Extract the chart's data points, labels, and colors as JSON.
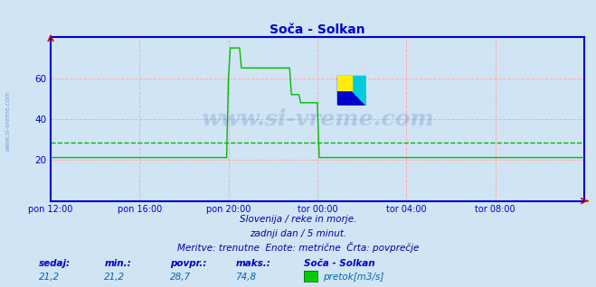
{
  "title": "Soča - Solkan",
  "bg_color": "#d0e4f4",
  "plot_bg_color": "#d0e4f4",
  "line_color": "#00bb00",
  "axis_color": "#0000cc",
  "grid_color_v": "#ffaaaa",
  "grid_color_h": "#ffaaaa",
  "avg_line_color": "#00bb00",
  "text_color": "#0000aa",
  "watermark": "www.si-vreme.com",
  "subtitle1": "Slovenija / reke in morje.",
  "subtitle2": "zadnji dan / 5 minut.",
  "subtitle3": "Meritve: trenutne  Enote: metrične  Črta: povprečje",
  "xlabel_times": [
    "pon 12:00",
    "pon 16:00",
    "pon 20:00",
    "tor 00:00",
    "tor 04:00",
    "tor 08:00"
  ],
  "yticks": [
    20,
    40,
    60
  ],
  "ylim": [
    0,
    80
  ],
  "avg_value": 28.7,
  "legend_label": "pretok[m3/s]",
  "legend_color": "#00cc00",
  "station_label": "Soča - Solkan",
  "stats_labels": [
    "sedaj:",
    "min.:",
    "povpr.:",
    "maks.:"
  ],
  "stats_values": [
    "21,2",
    "21,2",
    "28,7",
    "74,8"
  ],
  "base_flow": 21.2,
  "peak_flow": 74.8,
  "n_points": 289,
  "x_tick_indices": [
    0,
    48,
    96,
    144,
    192,
    240
  ]
}
